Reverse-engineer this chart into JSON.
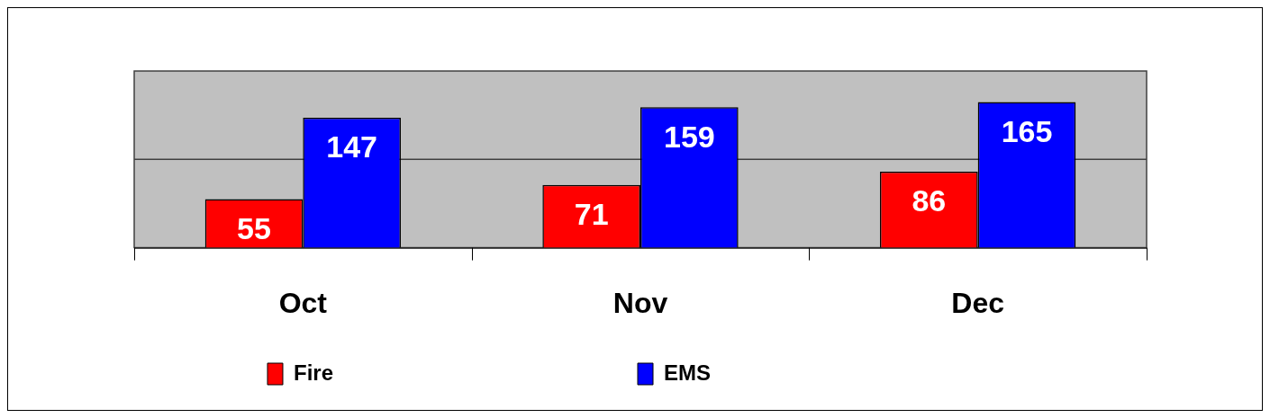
{
  "chart_data": {
    "type": "bar",
    "categories": [
      "Oct",
      "Nov",
      "Dec"
    ],
    "series": [
      {
        "name": "Fire",
        "color": "#ff0000",
        "values": [
          55,
          71,
          86
        ]
      },
      {
        "name": "EMS",
        "color": "#0000ff",
        "values": [
          147,
          159,
          165
        ]
      }
    ],
    "ylim": [
      0,
      200
    ],
    "ref_lines": [
      {
        "axis": "y",
        "value": 100,
        "color": "#404040"
      }
    ],
    "tick_labels": "x",
    "data_labels": true,
    "legend": "bottom"
  }
}
